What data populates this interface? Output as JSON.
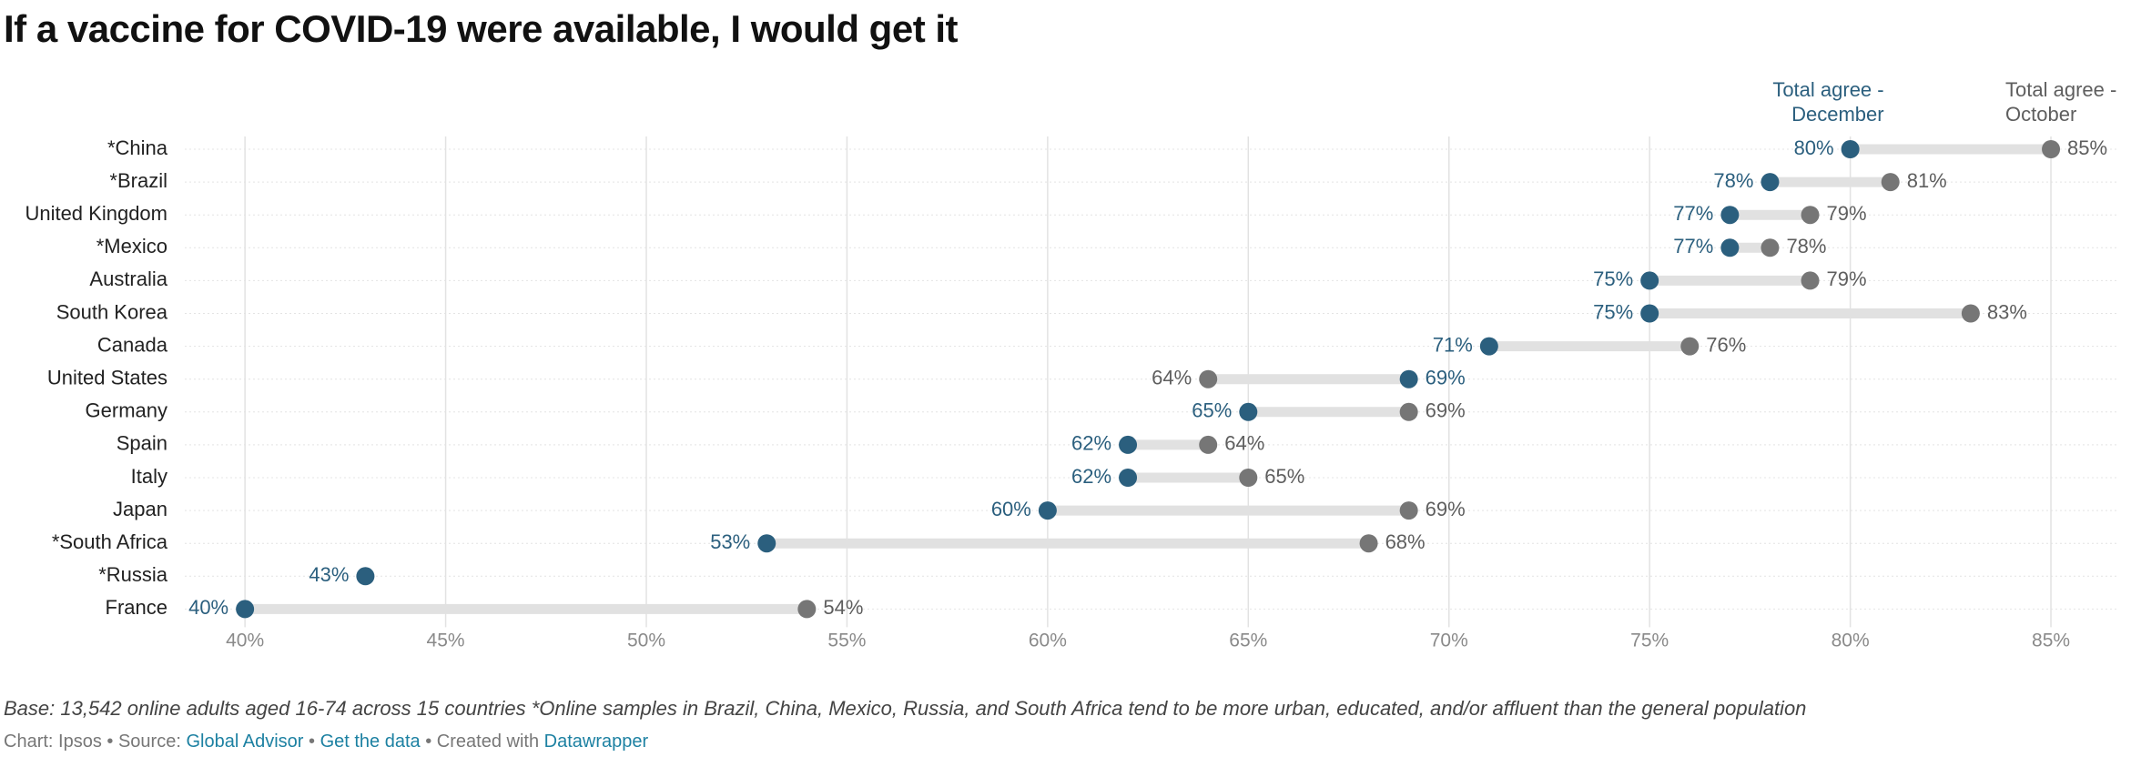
{
  "chart_data": {
    "type": "dot",
    "title": "If a vaccine for COVID-19 were available, I would get it",
    "categories": [
      "*China",
      "*Brazil",
      "United Kingdom",
      "*Mexico",
      "Australia",
      "South Korea",
      "Canada",
      "United States",
      "Germany",
      "Spain",
      "Italy",
      "Japan",
      "*South Africa",
      "*Russia",
      "France"
    ],
    "series": [
      {
        "name": "Total agree - December",
        "color": "#2b5f7e",
        "label_color": "#2b5f7e",
        "values": [
          80,
          78,
          77,
          77,
          75,
          75,
          71,
          69,
          65,
          62,
          62,
          60,
          53,
          43,
          40
        ],
        "value_labels": [
          "80%",
          "78%",
          "77%",
          "77%",
          "75%",
          "75%",
          "71%",
          "69%",
          "65%",
          "62%",
          "62%",
          "60%",
          "53%",
          "43%",
          "40%"
        ]
      },
      {
        "name": "Total agree - October",
        "color": "#767676",
        "label_color": "#5e5e5e",
        "values": [
          85,
          81,
          79,
          78,
          79,
          83,
          76,
          64,
          69,
          64,
          65,
          69,
          68,
          null,
          54
        ],
        "value_labels": [
          "85%",
          "81%",
          "79%",
          "78%",
          "79%",
          "83%",
          "76%",
          "64%",
          "69%",
          "64%",
          "65%",
          "69%",
          "68%",
          null,
          "54%"
        ]
      }
    ],
    "range_color": "#e1e1e1",
    "xlim": [
      38.5,
      86.7
    ],
    "xticks": [
      {
        "value": 40,
        "label": "40%"
      },
      {
        "value": 45,
        "label": "45%"
      },
      {
        "value": 50,
        "label": "50%"
      },
      {
        "value": 55,
        "label": "55%"
      },
      {
        "value": 60,
        "label": "60%"
      },
      {
        "value": 65,
        "label": "65%"
      },
      {
        "value": 70,
        "label": "70%"
      },
      {
        "value": 75,
        "label": "75%"
      },
      {
        "value": 80,
        "label": "80%"
      },
      {
        "value": 85,
        "label": "85%"
      }
    ],
    "grid": true,
    "note": "Base: 13,542 online adults aged 16-74 across 15 countries *Online samples in Brazil, China, Mexico, Russia, and South Africa tend to be more urban, educated, and/or affluent than the general population",
    "credit": {
      "chart": "Chart: Ipsos",
      "separator": "•",
      "source_label": "Source:",
      "source": "Global Advisor",
      "get_data": "Get the data",
      "created_with": "Created with",
      "tool": "Datawrapper"
    }
  }
}
